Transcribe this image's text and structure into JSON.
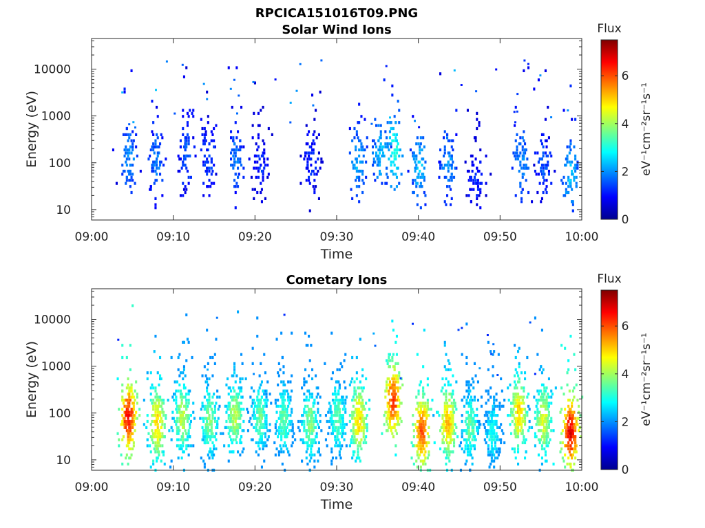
{
  "figure": {
    "title_line1": "RPCICA151016T09.PNG"
  },
  "chart_data": [
    {
      "type": "heatmap",
      "title": "Solar Wind Ions",
      "xlabel": "Time",
      "ylabel": "Energy (eV)",
      "x_ticks": [
        "09:00",
        "09:10",
        "09:20",
        "09:30",
        "09:40",
        "09:50",
        "10:00"
      ],
      "x_range_minutes": [
        0,
        60
      ],
      "y_scale": "log",
      "y_ticks": [
        "10",
        "100",
        "1000",
        "10000"
      ],
      "y_range": [
        6,
        45000
      ],
      "colorbar": {
        "title": "Flux",
        "unit": "eV⁻¹cm⁻²sr⁻¹s⁻¹",
        "ticks": [
          "0",
          "2",
          "4",
          "6"
        ],
        "range": [
          0,
          7.5
        ],
        "colormap": "jet"
      },
      "bursts": [
        {
          "t": 4.5,
          "e": 120,
          "v": 2.0
        },
        {
          "t": 7.8,
          "e": 110,
          "v": 1.8
        },
        {
          "t": 11.5,
          "e": 150,
          "v": 1.6
        },
        {
          "t": 14.2,
          "e": 110,
          "v": 1.4
        },
        {
          "t": 17.5,
          "e": 130,
          "v": 1.8
        },
        {
          "t": 20.5,
          "e": 80,
          "v": 1.2
        },
        {
          "t": 26.8,
          "e": 100,
          "v": 1.2
        },
        {
          "t": 32.5,
          "e": 110,
          "v": 2.2
        },
        {
          "t": 35.3,
          "e": 160,
          "v": 2.4
        },
        {
          "t": 37.0,
          "e": 180,
          "v": 3.0
        },
        {
          "t": 40.0,
          "e": 80,
          "v": 2.4
        },
        {
          "t": 43.5,
          "e": 100,
          "v": 2.0
        },
        {
          "t": 46.8,
          "e": 40,
          "v": 1.2
        },
        {
          "t": 52.5,
          "e": 110,
          "v": 2.0
        },
        {
          "t": 55.2,
          "e": 90,
          "v": 1.5
        },
        {
          "t": 58.5,
          "e": 50,
          "v": 2.4
        }
      ]
    },
    {
      "type": "heatmap",
      "title": "Cometary Ions",
      "xlabel": "Time",
      "ylabel": "Energy (eV)",
      "x_ticks": [
        "09:00",
        "09:10",
        "09:20",
        "09:30",
        "09:40",
        "09:50",
        "10:00"
      ],
      "x_range_minutes": [
        0,
        60
      ],
      "y_scale": "log",
      "y_ticks": [
        "10",
        "100",
        "1000",
        "10000"
      ],
      "y_range": [
        6,
        45000
      ],
      "colorbar": {
        "title": "Flux",
        "unit": "eV⁻¹cm⁻²sr⁻¹s⁻¹",
        "ticks": [
          "0",
          "2",
          "4",
          "6"
        ],
        "range": [
          0,
          7.5
        ],
        "colormap": "jet"
      },
      "bursts": [
        {
          "t": 4.4,
          "e": 80,
          "v": 6.5
        },
        {
          "t": 7.9,
          "e": 60,
          "v": 5.0
        },
        {
          "t": 11.0,
          "e": 80,
          "v": 4.2
        },
        {
          "t": 14.3,
          "e": 70,
          "v": 3.8
        },
        {
          "t": 17.4,
          "e": 90,
          "v": 4.2
        },
        {
          "t": 20.5,
          "e": 80,
          "v": 3.6
        },
        {
          "t": 23.4,
          "e": 70,
          "v": 3.5
        },
        {
          "t": 26.6,
          "e": 60,
          "v": 3.8
        },
        {
          "t": 30.0,
          "e": 80,
          "v": 3.5
        },
        {
          "t": 32.6,
          "e": 70,
          "v": 5.0
        },
        {
          "t": 36.8,
          "e": 180,
          "v": 6.2
        },
        {
          "t": 40.3,
          "e": 40,
          "v": 6.0
        },
        {
          "t": 43.5,
          "e": 60,
          "v": 5.2
        },
        {
          "t": 46.2,
          "e": 50,
          "v": 3.6
        },
        {
          "t": 49.0,
          "e": 40,
          "v": 3.0
        },
        {
          "t": 52.2,
          "e": 100,
          "v": 5.0
        },
        {
          "t": 55.2,
          "e": 70,
          "v": 4.5
        },
        {
          "t": 58.5,
          "e": 40,
          "v": 6.8
        }
      ]
    }
  ]
}
